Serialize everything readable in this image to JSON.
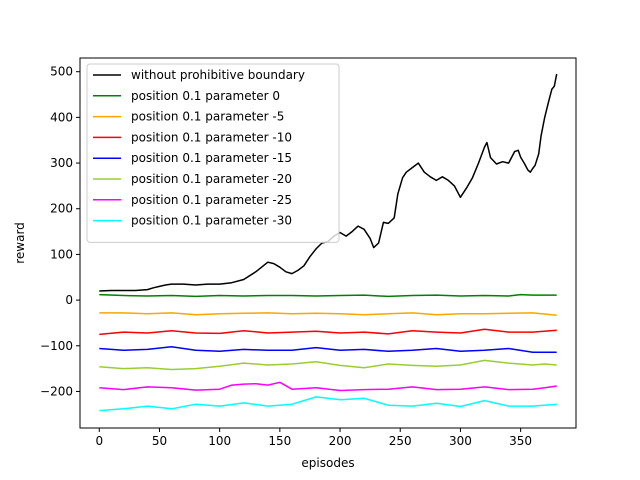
{
  "chart_data": {
    "type": "line",
    "title": "",
    "xlabel": "episodes",
    "ylabel": "reward",
    "xlim": [
      -16,
      396
    ],
    "ylim": [
      -280,
      530
    ],
    "xticks": [
      0,
      50,
      100,
      150,
      200,
      250,
      300,
      350
    ],
    "yticks": [
      -200,
      -100,
      0,
      100,
      200,
      300,
      400,
      500
    ],
    "xtick_labels": [
      "0",
      "50",
      "100",
      "150",
      "200",
      "250",
      "300",
      "350"
    ],
    "ytick_labels": [
      "−200",
      "−100",
      "0",
      "100",
      "200",
      "300",
      "400",
      "500"
    ],
    "legend_position": "top-left",
    "grid": false,
    "series": [
      {
        "name": "without prohibitive boundary",
        "color": "#000000",
        "points": [
          [
            0,
            20
          ],
          [
            10,
            21
          ],
          [
            20,
            21
          ],
          [
            30,
            21
          ],
          [
            40,
            23
          ],
          [
            45,
            27
          ],
          [
            50,
            30
          ],
          [
            55,
            33
          ],
          [
            60,
            35
          ],
          [
            70,
            35
          ],
          [
            80,
            33
          ],
          [
            90,
            35
          ],
          [
            100,
            35
          ],
          [
            110,
            38
          ],
          [
            120,
            45
          ],
          [
            130,
            62
          ],
          [
            140,
            83
          ],
          [
            145,
            80
          ],
          [
            150,
            72
          ],
          [
            155,
            62
          ],
          [
            160,
            58
          ],
          [
            165,
            65
          ],
          [
            170,
            75
          ],
          [
            175,
            95
          ],
          [
            180,
            112
          ],
          [
            185,
            125
          ],
          [
            190,
            128
          ],
          [
            195,
            140
          ],
          [
            200,
            148
          ],
          [
            205,
            140
          ],
          [
            210,
            150
          ],
          [
            215,
            162
          ],
          [
            220,
            155
          ],
          [
            225,
            135
          ],
          [
            228,
            115
          ],
          [
            232,
            125
          ],
          [
            236,
            170
          ],
          [
            240,
            168
          ],
          [
            245,
            180
          ],
          [
            248,
            232
          ],
          [
            252,
            268
          ],
          [
            255,
            280
          ],
          [
            260,
            290
          ],
          [
            265,
            300
          ],
          [
            270,
            280
          ],
          [
            275,
            270
          ],
          [
            280,
            262
          ],
          [
            285,
            270
          ],
          [
            290,
            262
          ],
          [
            295,
            250
          ],
          [
            300,
            225
          ],
          [
            305,
            245
          ],
          [
            310,
            268
          ],
          [
            315,
            300
          ],
          [
            320,
            335
          ],
          [
            322,
            345
          ],
          [
            325,
            312
          ],
          [
            330,
            298
          ],
          [
            335,
            303
          ],
          [
            340,
            300
          ],
          [
            345,
            325
          ],
          [
            348,
            328
          ],
          [
            350,
            313
          ],
          [
            353,
            300
          ],
          [
            356,
            285
          ],
          [
            358,
            280
          ],
          [
            360,
            288
          ],
          [
            362,
            295
          ],
          [
            365,
            320
          ],
          [
            367,
            360
          ],
          [
            370,
            400
          ],
          [
            373,
            432
          ],
          [
            376,
            462
          ],
          [
            378,
            468
          ],
          [
            380,
            495
          ]
        ]
      },
      {
        "name": "position 0.1 parameter 0",
        "color": "#008000",
        "points": [
          [
            0,
            12
          ],
          [
            20,
            10
          ],
          [
            40,
            9
          ],
          [
            60,
            10
          ],
          [
            80,
            8
          ],
          [
            100,
            10
          ],
          [
            120,
            9
          ],
          [
            140,
            10
          ],
          [
            160,
            10
          ],
          [
            180,
            9
          ],
          [
            200,
            10
          ],
          [
            220,
            11
          ],
          [
            240,
            8
          ],
          [
            260,
            10
          ],
          [
            280,
            11
          ],
          [
            300,
            9
          ],
          [
            320,
            10
          ],
          [
            340,
            9
          ],
          [
            350,
            12
          ],
          [
            360,
            11
          ],
          [
            370,
            11
          ],
          [
            380,
            11
          ]
        ]
      },
      {
        "name": "position 0.1 parameter -5",
        "color": "#FFA500",
        "points": [
          [
            0,
            -28
          ],
          [
            20,
            -28
          ],
          [
            40,
            -30
          ],
          [
            60,
            -28
          ],
          [
            80,
            -32
          ],
          [
            100,
            -30
          ],
          [
            120,
            -29
          ],
          [
            140,
            -28
          ],
          [
            160,
            -30
          ],
          [
            180,
            -29
          ],
          [
            200,
            -30
          ],
          [
            220,
            -32
          ],
          [
            240,
            -30
          ],
          [
            260,
            -28
          ],
          [
            280,
            -32
          ],
          [
            300,
            -30
          ],
          [
            320,
            -30
          ],
          [
            340,
            -29
          ],
          [
            360,
            -28
          ],
          [
            380,
            -33
          ]
        ]
      },
      {
        "name": "position 0.1 parameter -10",
        "color": "#FF0000",
        "points": [
          [
            0,
            -75
          ],
          [
            20,
            -70
          ],
          [
            40,
            -72
          ],
          [
            60,
            -67
          ],
          [
            80,
            -72
          ],
          [
            100,
            -73
          ],
          [
            120,
            -67
          ],
          [
            140,
            -72
          ],
          [
            160,
            -70
          ],
          [
            180,
            -68
          ],
          [
            200,
            -72
          ],
          [
            220,
            -70
          ],
          [
            240,
            -74
          ],
          [
            260,
            -67
          ],
          [
            280,
            -70
          ],
          [
            300,
            -72
          ],
          [
            320,
            -64
          ],
          [
            340,
            -70
          ],
          [
            360,
            -70
          ],
          [
            380,
            -66
          ]
        ]
      },
      {
        "name": "position 0.1 parameter -15",
        "color": "#0000FF",
        "points": [
          [
            0,
            -106
          ],
          [
            20,
            -110
          ],
          [
            40,
            -108
          ],
          [
            60,
            -102
          ],
          [
            80,
            -110
          ],
          [
            100,
            -112
          ],
          [
            120,
            -108
          ],
          [
            140,
            -110
          ],
          [
            160,
            -110
          ],
          [
            180,
            -104
          ],
          [
            200,
            -110
          ],
          [
            220,
            -108
          ],
          [
            240,
            -112
          ],
          [
            260,
            -110
          ],
          [
            280,
            -106
          ],
          [
            300,
            -112
          ],
          [
            320,
            -110
          ],
          [
            340,
            -106
          ],
          [
            360,
            -114
          ],
          [
            380,
            -114
          ]
        ]
      },
      {
        "name": "position 0.1 parameter -20",
        "color": "#9ACD32",
        "points": [
          [
            0,
            -146
          ],
          [
            20,
            -150
          ],
          [
            40,
            -148
          ],
          [
            60,
            -152
          ],
          [
            80,
            -150
          ],
          [
            100,
            -145
          ],
          [
            120,
            -138
          ],
          [
            140,
            -142
          ],
          [
            160,
            -140
          ],
          [
            180,
            -135
          ],
          [
            200,
            -143
          ],
          [
            220,
            -148
          ],
          [
            240,
            -140
          ],
          [
            260,
            -143
          ],
          [
            280,
            -145
          ],
          [
            300,
            -142
          ],
          [
            320,
            -132
          ],
          [
            340,
            -138
          ],
          [
            360,
            -142
          ],
          [
            370,
            -140
          ],
          [
            380,
            -142
          ]
        ]
      },
      {
        "name": "position 0.1 parameter -25",
        "color": "#FF00FF",
        "points": [
          [
            0,
            -192
          ],
          [
            20,
            -196
          ],
          [
            40,
            -190
          ],
          [
            60,
            -192
          ],
          [
            80,
            -197
          ],
          [
            100,
            -195
          ],
          [
            110,
            -186
          ],
          [
            120,
            -184
          ],
          [
            130,
            -183
          ],
          [
            140,
            -186
          ],
          [
            150,
            -180
          ],
          [
            160,
            -195
          ],
          [
            180,
            -192
          ],
          [
            200,
            -198
          ],
          [
            220,
            -196
          ],
          [
            240,
            -195
          ],
          [
            260,
            -190
          ],
          [
            280,
            -196
          ],
          [
            300,
            -195
          ],
          [
            320,
            -190
          ],
          [
            340,
            -196
          ],
          [
            360,
            -195
          ],
          [
            370,
            -192
          ],
          [
            380,
            -188
          ]
        ]
      },
      {
        "name": "position 0.1 parameter -30",
        "color": "#00FFFF",
        "points": [
          [
            0,
            -242
          ],
          [
            20,
            -238
          ],
          [
            40,
            -232
          ],
          [
            60,
            -238
          ],
          [
            80,
            -228
          ],
          [
            100,
            -232
          ],
          [
            120,
            -225
          ],
          [
            140,
            -232
          ],
          [
            160,
            -228
          ],
          [
            180,
            -212
          ],
          [
            200,
            -218
          ],
          [
            220,
            -215
          ],
          [
            240,
            -230
          ],
          [
            260,
            -232
          ],
          [
            280,
            -226
          ],
          [
            300,
            -233
          ],
          [
            320,
            -220
          ],
          [
            340,
            -232
          ],
          [
            360,
            -232
          ],
          [
            380,
            -228
          ]
        ]
      }
    ]
  }
}
